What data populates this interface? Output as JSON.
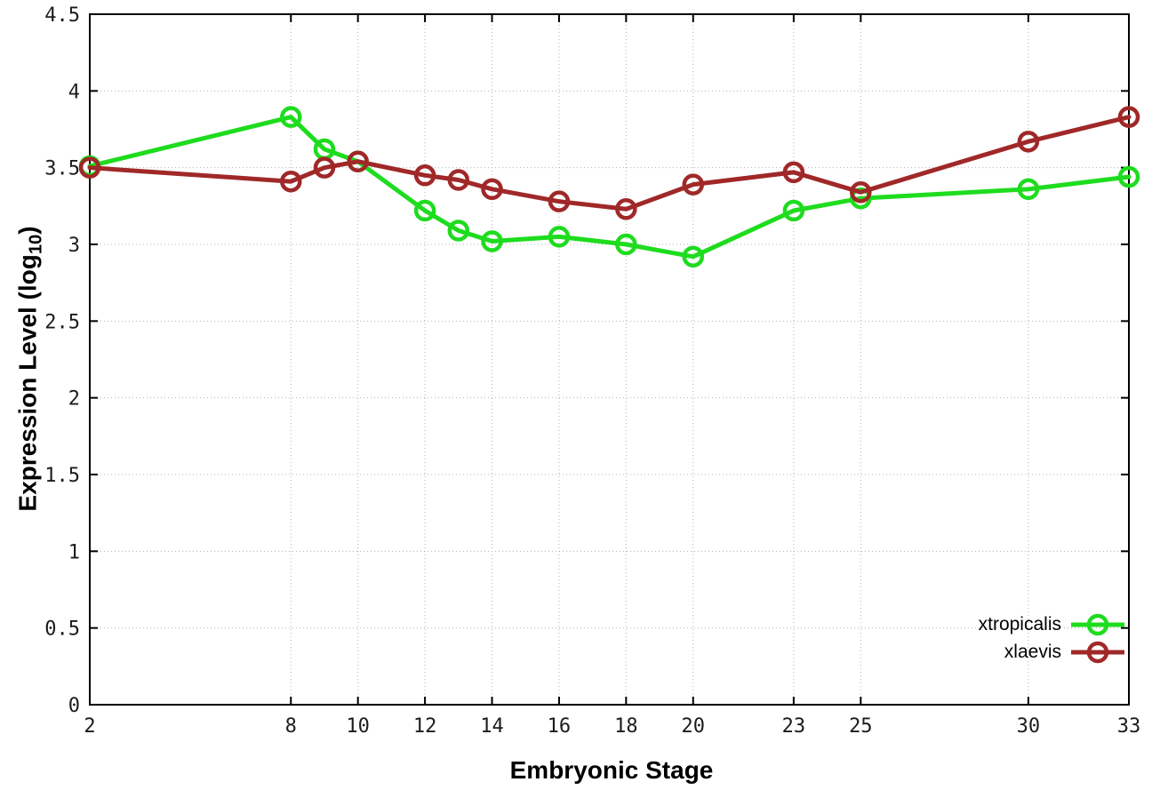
{
  "chart_data": {
    "type": "line",
    "title": "",
    "xlabel": "Embryonic Stage",
    "ylabel": "Expression Level (log10)",
    "ylabel_parts": {
      "main": "Expression Level (log",
      "sub": "10",
      "close": ")"
    },
    "xlim": [
      2,
      33
    ],
    "ylim": [
      0,
      4.5
    ],
    "x_ticks": [
      2,
      8,
      10,
      12,
      14,
      16,
      18,
      20,
      23,
      25,
      30,
      33
    ],
    "x_tick_labels": [
      "2",
      "8",
      "10",
      "12",
      "14",
      "16",
      "18",
      "20",
      "23",
      "25",
      "30",
      "33"
    ],
    "y_ticks": [
      0,
      0.5,
      1,
      1.5,
      2,
      2.5,
      3,
      3.5,
      4,
      4.5
    ],
    "y_tick_labels": [
      "0",
      "0.5",
      "1",
      "1.5",
      "2",
      "2.5",
      "3",
      "3.5",
      "4",
      "4.5"
    ],
    "grid": true,
    "legend_position": "bottom-right-inside",
    "x": [
      2,
      8,
      9,
      10,
      12,
      13,
      14,
      16,
      18,
      20,
      23,
      25,
      30,
      33
    ],
    "series": [
      {
        "name": "xtropicalis",
        "color": "#1edc1e",
        "values": [
          3.51,
          3.83,
          3.62,
          3.54,
          3.22,
          3.09,
          3.02,
          3.05,
          3.0,
          2.92,
          3.22,
          3.3,
          3.36,
          3.44
        ]
      },
      {
        "name": "xlaevis",
        "color": "#a02828",
        "values": [
          3.5,
          3.41,
          3.5,
          3.54,
          3.45,
          3.42,
          3.36,
          3.28,
          3.23,
          3.39,
          3.47,
          3.34,
          3.67,
          3.83
        ]
      }
    ],
    "marker": "open-circle",
    "background": "#ffffff"
  }
}
